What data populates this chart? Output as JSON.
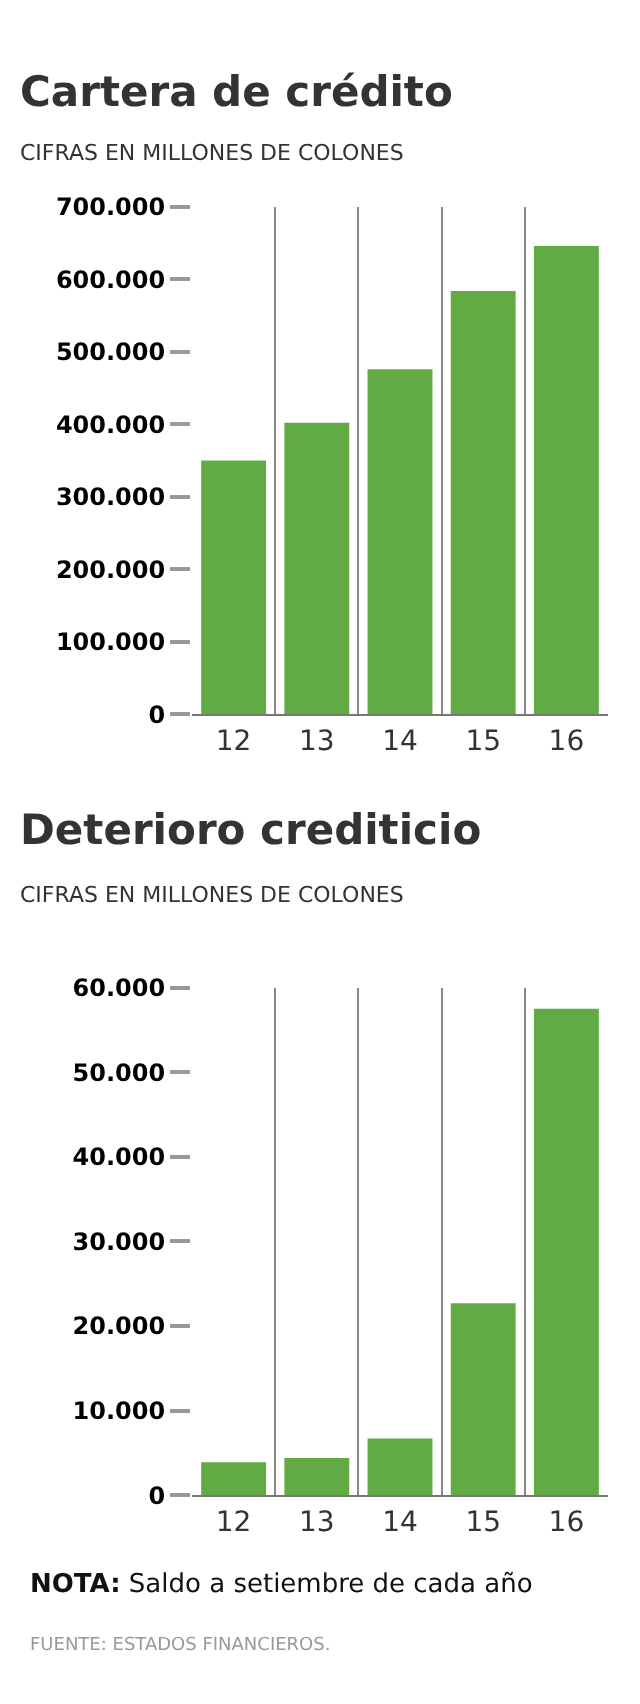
{
  "chart_data": [
    {
      "type": "bar",
      "title": "Cartera de crédito",
      "subtitle": "CIFRAS EN MILLONES DE COLONES",
      "categories": [
        "12",
        "13",
        "14",
        "15",
        "16"
      ],
      "values": [
        350000,
        402000,
        476000,
        584000,
        646000
      ],
      "color": "#62ab44",
      "ylim": [
        0,
        700000
      ],
      "yticks": [
        0,
        {
          "value": 100000,
          "label": "100.000"
        },
        {
          "value": 200000,
          "label": "200.000"
        },
        {
          "value": 300000,
          "label": "300.000"
        },
        {
          "value": 400000,
          "label": "400.000"
        },
        {
          "value": 500000,
          "label": "500.000"
        },
        {
          "value": 600000,
          "label": "600.000"
        },
        {
          "value": 700000,
          "label": "700.000"
        }
      ],
      "grid": "x"
    },
    {
      "type": "bar",
      "title": "Deterioro crediticio",
      "subtitle": "CIFRAS EN MILLONES DE COLONES",
      "categories": [
        "12",
        "13",
        "14",
        "15",
        "16"
      ],
      "values": [
        3900,
        4400,
        6700,
        22700,
        57500
      ],
      "color": "#62ab44",
      "ylim": [
        0,
        60000
      ],
      "yticks": [
        0,
        {
          "value": 10000,
          "label": "10.000"
        },
        {
          "value": 20000,
          "label": "20.000"
        },
        {
          "value": 30000,
          "label": "30.000"
        },
        {
          "value": 40000,
          "label": "40.000"
        },
        {
          "value": 50000,
          "label": "50.000"
        },
        {
          "value": 60000,
          "label": "60.000"
        }
      ],
      "grid": "x",
      "annotations": [
        "NOTA: Saldo a setiembre de cada año",
        "FUENTE: ESTADOS FINANCIEROS."
      ]
    }
  ]
}
